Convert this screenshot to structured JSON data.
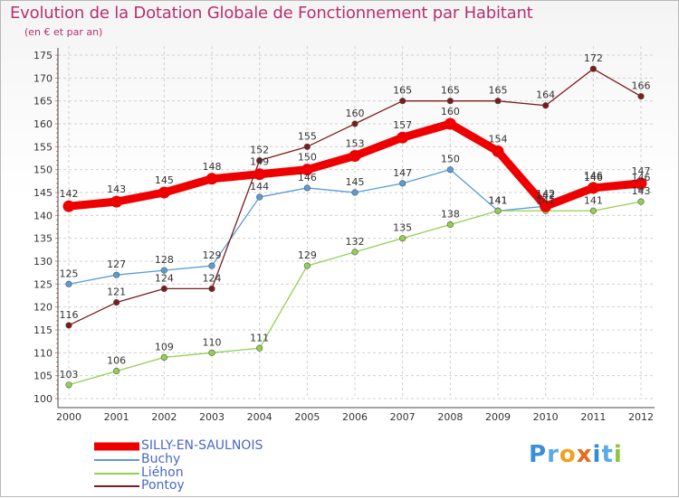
{
  "title": "Evolution de la Dotation Globale de Fonctionnement par Habitant",
  "subtitle": "(en € et par an)",
  "brand": [
    "P",
    "r",
    "o",
    "x",
    "i",
    "t",
    "i"
  ],
  "chart_data": {
    "type": "line",
    "title": "Evolution de la Dotation Globale de Fonctionnement par Habitant",
    "ylabel": "(en € et par an)",
    "xlabel": "",
    "ylim": [
      100,
      175
    ],
    "yticks": [
      100,
      105,
      110,
      115,
      120,
      125,
      130,
      135,
      140,
      145,
      150,
      155,
      160,
      165,
      170,
      175
    ],
    "categories": [
      "2000",
      "2001",
      "2002",
      "2003",
      "2004",
      "2005",
      "2006",
      "2007",
      "2008",
      "2009",
      "2010",
      "2011",
      "2012"
    ],
    "legend_position": "bottom-left",
    "series": [
      {
        "name": "SILLY-EN-SAULNOIS",
        "color": "#ee0000",
        "values": [
          142,
          143,
          145,
          148,
          149,
          150,
          153,
          157,
          160,
          154,
          142,
          146,
          147
        ],
        "labels": [
          "142",
          "143",
          "145",
          "148",
          "149",
          "150",
          "153",
          "157",
          "160",
          "154",
          "142",
          "146",
          "147"
        ]
      },
      {
        "name": "Buchy",
        "color": "#5b9bd5",
        "values": [
          125,
          127,
          128,
          129,
          144,
          146,
          145,
          147,
          150,
          141,
          142,
          146,
          146
        ],
        "labels": [
          "125",
          "127",
          "128",
          "129",
          "144",
          "146",
          "145",
          "147",
          "150",
          "141",
          "142",
          "146",
          "146"
        ]
      },
      {
        "name": "Liéhon",
        "color": "#92d050",
        "values": [
          103,
          106,
          109,
          110,
          111,
          129,
          132,
          135,
          138,
          141,
          141,
          141,
          143
        ],
        "labels": [
          "103",
          "106",
          "109",
          "110",
          "111",
          "129",
          "132",
          "135",
          "138",
          "141",
          "141",
          "141",
          "143"
        ]
      },
      {
        "name": "Pontoy",
        "color": "#7b1c1c",
        "values": [
          116,
          121,
          124,
          124,
          152,
          155,
          160,
          165,
          165,
          165,
          164,
          172,
          166
        ],
        "labels": [
          "116",
          "121",
          "124",
          "124",
          "152",
          "155",
          "160",
          "165",
          "165",
          "165",
          "164",
          "172",
          "166"
        ]
      }
    ]
  }
}
